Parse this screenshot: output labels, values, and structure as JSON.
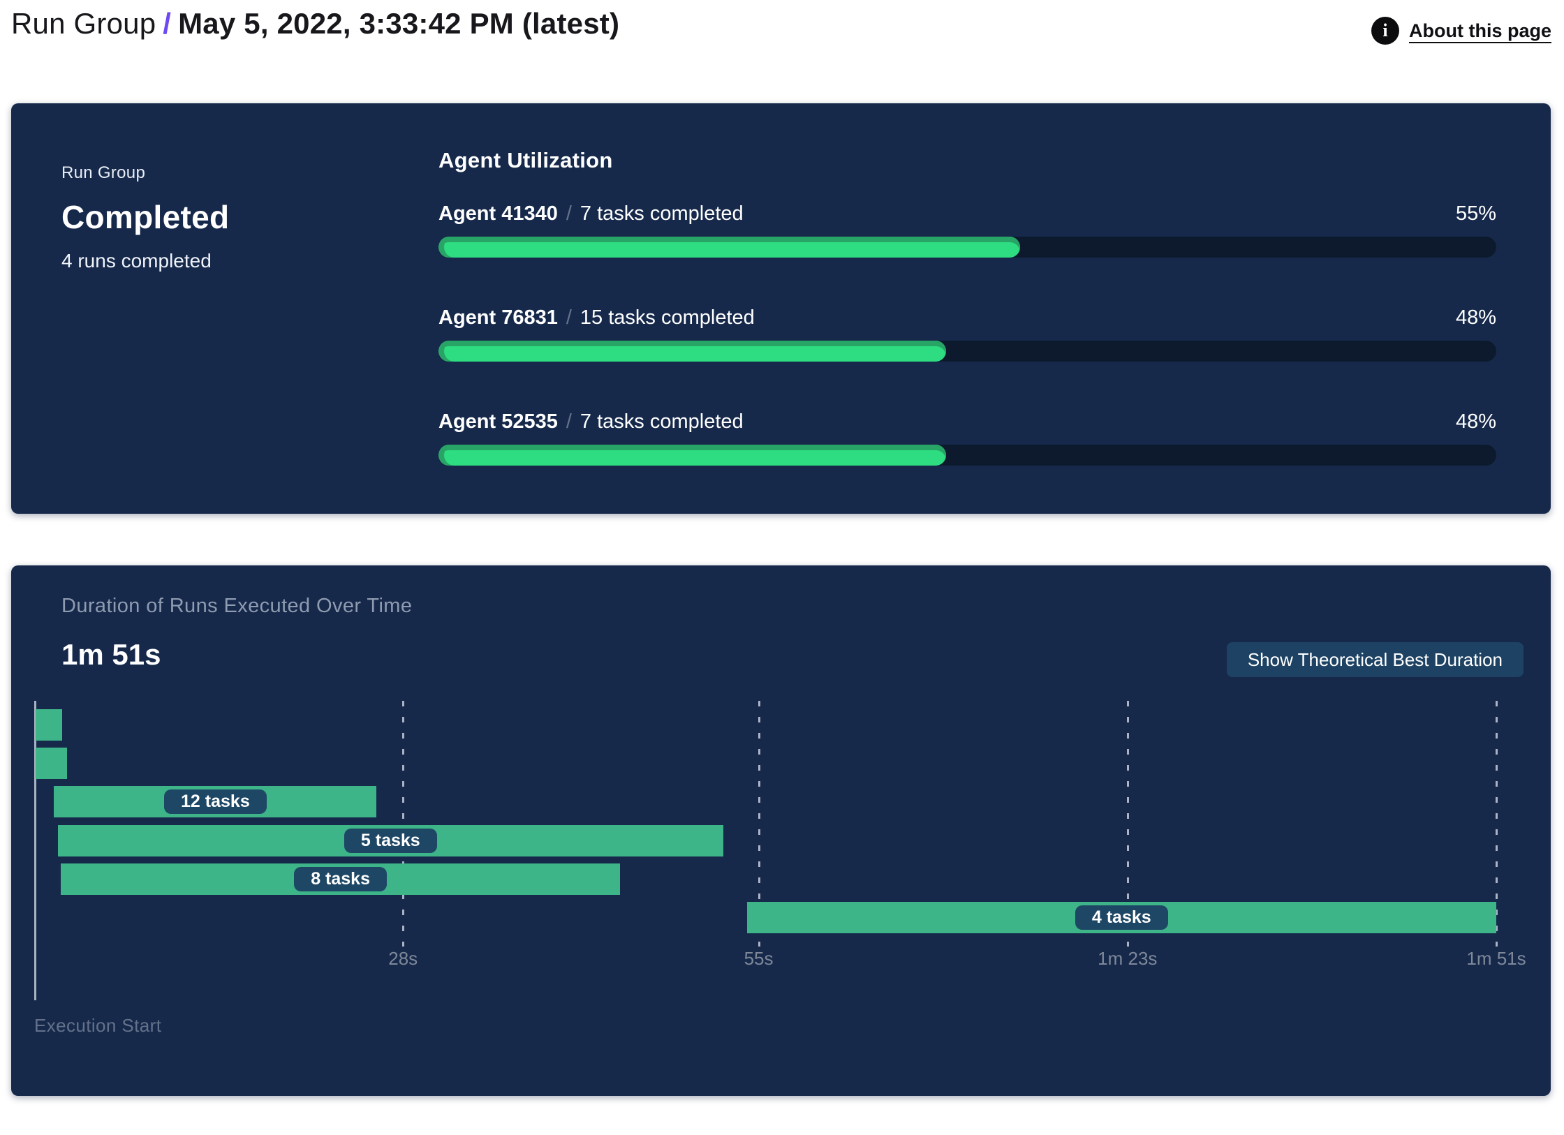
{
  "header": {
    "breadcrumb": "Run Group",
    "separator": "/",
    "title": "May 5, 2022, 3:33:42 PM (latest)",
    "about_label": "About this page",
    "info_icon": "i"
  },
  "summary": {
    "group_label": "Run Group",
    "status": "Completed",
    "runs_text": "4 runs completed"
  },
  "utilization": {
    "title": "Agent Utilization",
    "separator": "/",
    "agents": [
      {
        "name": "Agent 41340",
        "tasks": "7 tasks completed",
        "percent": 55,
        "percent_label": "55%"
      },
      {
        "name": "Agent 76831",
        "tasks": "15 tasks completed",
        "percent": 48,
        "percent_label": "48%"
      },
      {
        "name": "Agent 52535",
        "tasks": "7 tasks completed",
        "percent": 48,
        "percent_label": "48%"
      }
    ]
  },
  "duration": {
    "title": "Duration of Runs Executed Over Time",
    "total": "1m 51s",
    "button_label": "Show Theoretical Best Duration",
    "execution_start_label": "Execution Start"
  },
  "chart_data": {
    "type": "gantt",
    "title": "Duration of Runs Executed Over Time",
    "total_duration_label": "1m 51s",
    "axis": {
      "start_label": "Execution Start",
      "max_seconds": 111,
      "ticks": [
        {
          "seconds": 28,
          "label": "28s"
        },
        {
          "seconds": 55,
          "label": "55s"
        },
        {
          "seconds": 83,
          "label": "1m 23s"
        },
        {
          "seconds": 111,
          "label": "1m 51s"
        }
      ]
    },
    "runs": [
      {
        "start_seconds": 0.1,
        "end_seconds": 2.1,
        "label": ""
      },
      {
        "start_seconds": 0.1,
        "end_seconds": 2.5,
        "label": ""
      },
      {
        "start_seconds": 1.5,
        "end_seconds": 26.0,
        "label": "12 tasks"
      },
      {
        "start_seconds": 1.8,
        "end_seconds": 52.3,
        "label": "5 tasks"
      },
      {
        "start_seconds": 2.0,
        "end_seconds": 44.5,
        "label": "8 tasks"
      },
      {
        "start_seconds": 54.1,
        "end_seconds": 111.0,
        "label": "4 tasks"
      }
    ]
  },
  "colors": {
    "panel_bg": "#16294b",
    "progress_green": "#2edd81",
    "progress_green_shade": "#28a566",
    "progress_track": "#0d1a2e",
    "gantt_green": "#3eb489",
    "label_pill_bg": "#1e4765",
    "button_bg": "#1d4263",
    "accent_purple": "#6d4af0"
  }
}
